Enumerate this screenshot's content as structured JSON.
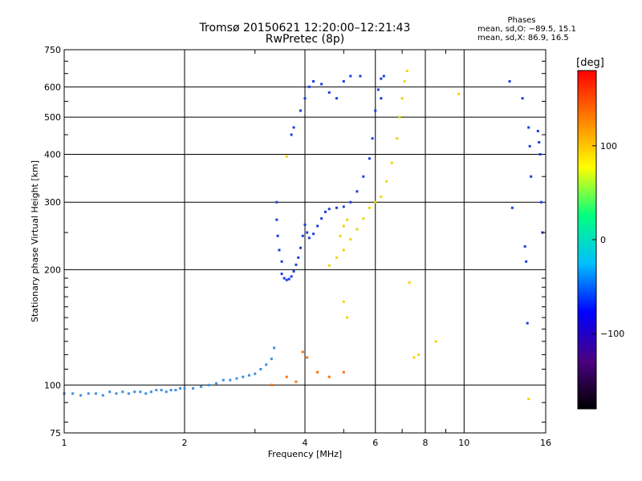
{
  "header": {
    "title_line1": "Tromsø 20150621 12:20:00–12:21:43",
    "title_line2": "RwPretec (8p)"
  },
  "phase_info": {
    "title": "Phases",
    "line_o": "mean, sd,O: −89.5, 15.1",
    "line_x": "mean, sd,X:  86.9, 16.5"
  },
  "colorbar": {
    "label": "[deg]",
    "ticks": [
      "100",
      "0",
      "−100"
    ],
    "tick_values": [
      100,
      0,
      -100
    ],
    "range": [
      -180,
      180
    ],
    "colors": [
      "#000000",
      "#4b0082",
      "#0000ff",
      "#00bfff",
      "#00ff80",
      "#ffff00",
      "#ff8000",
      "#ff0000"
    ]
  },
  "chart_data": {
    "type": "scatter",
    "title": "Tromsø 20150621 12:20:00–12:21:43",
    "subtitle": "RwPretec (8p)",
    "xlabel": "Frequency [MHz]",
    "ylabel": "Stationary phase Virtual Height [km]",
    "xscale": "log",
    "yscale": "log",
    "xlim": [
      1,
      16
    ],
    "ylim": [
      75,
      750
    ],
    "grid": true,
    "x_ticks_major": [
      1,
      2,
      4,
      6,
      8,
      10,
      16
    ],
    "x_tick_labels": [
      "1",
      "2",
      "4",
      "6",
      "8",
      "10",
      "16"
    ],
    "x_ticks_minor": [
      3,
      5,
      7,
      9
    ],
    "y_ticks_major": [
      75,
      100,
      200,
      300,
      400,
      500,
      600,
      750
    ],
    "y_tick_labels": [
      "75",
      "100",
      "200",
      "300",
      "400",
      "500",
      "600",
      "750"
    ],
    "series": [
      {
        "color": "#3a8fe0",
        "phase": -95,
        "points": [
          [
            1.0,
            95
          ],
          [
            1.05,
            95
          ],
          [
            1.1,
            94
          ],
          [
            1.15,
            95
          ],
          [
            1.2,
            95
          ],
          [
            1.25,
            94
          ],
          [
            1.3,
            96
          ],
          [
            1.35,
            95
          ],
          [
            1.4,
            96
          ],
          [
            1.45,
            95
          ],
          [
            1.5,
            96
          ],
          [
            1.55,
            96
          ],
          [
            1.6,
            95
          ],
          [
            1.65,
            96
          ],
          [
            1.7,
            97
          ],
          [
            1.75,
            97
          ],
          [
            1.8,
            96
          ],
          [
            1.85,
            97
          ],
          [
            1.9,
            97
          ],
          [
            1.95,
            98
          ],
          [
            2.0,
            98
          ],
          [
            2.1,
            98
          ],
          [
            2.2,
            99
          ],
          [
            2.3,
            100
          ],
          [
            2.4,
            101
          ],
          [
            2.5,
            103
          ],
          [
            2.6,
            103
          ],
          [
            2.7,
            104
          ],
          [
            2.8,
            105
          ],
          [
            2.9,
            106
          ],
          [
            3.0,
            107
          ],
          [
            3.1,
            110
          ],
          [
            3.2,
            113
          ],
          [
            3.3,
            117
          ],
          [
            3.35,
            125
          ]
        ]
      },
      {
        "color": "#1a3fe0",
        "phase": -110,
        "points": [
          [
            3.4,
            300
          ],
          [
            3.4,
            270
          ],
          [
            3.42,
            245
          ],
          [
            3.45,
            225
          ],
          [
            3.5,
            210
          ],
          [
            3.5,
            195
          ],
          [
            3.55,
            190
          ],
          [
            3.6,
            188
          ],
          [
            3.65,
            189
          ],
          [
            3.7,
            192
          ],
          [
            3.75,
            198
          ],
          [
            3.8,
            206
          ],
          [
            3.85,
            215
          ],
          [
            3.9,
            228
          ],
          [
            3.95,
            245
          ],
          [
            4.0,
            262
          ],
          [
            4.05,
            250
          ],
          [
            4.1,
            242
          ],
          [
            4.2,
            248
          ],
          [
            4.3,
            260
          ],
          [
            4.4,
            272
          ],
          [
            4.5,
            283
          ],
          [
            4.6,
            288
          ],
          [
            4.8,
            290
          ],
          [
            5.0,
            292
          ],
          [
            5.2,
            300
          ],
          [
            5.4,
            320
          ],
          [
            5.6,
            350
          ],
          [
            5.8,
            390
          ],
          [
            5.9,
            440
          ],
          [
            6.0,
            520
          ],
          [
            6.1,
            590
          ],
          [
            6.2,
            630
          ],
          [
            3.9,
            520
          ],
          [
            4.0,
            560
          ],
          [
            4.1,
            600
          ],
          [
            4.2,
            620
          ],
          [
            4.4,
            610
          ],
          [
            4.6,
            580
          ],
          [
            4.8,
            560
          ],
          [
            5.0,
            620
          ],
          [
            5.2,
            640
          ],
          [
            5.5,
            640
          ],
          [
            6.2,
            560
          ],
          [
            6.3,
            640
          ],
          [
            3.7,
            450
          ],
          [
            3.75,
            470
          ]
        ]
      },
      {
        "color": "#e8d800",
        "phase": 95,
        "points": [
          [
            4.6,
            205
          ],
          [
            4.8,
            215
          ],
          [
            5.0,
            225
          ],
          [
            5.2,
            240
          ],
          [
            5.4,
            255
          ],
          [
            5.6,
            272
          ],
          [
            5.8,
            290
          ],
          [
            6.0,
            300
          ],
          [
            6.2,
            310
          ],
          [
            6.4,
            340
          ],
          [
            6.6,
            380
          ],
          [
            6.8,
            440
          ],
          [
            6.9,
            500
          ],
          [
            7.0,
            560
          ],
          [
            7.1,
            620
          ],
          [
            7.2,
            660
          ],
          [
            5.0,
            260
          ],
          [
            5.1,
            270
          ],
          [
            4.9,
            245
          ]
        ]
      },
      {
        "color": "#ffd000",
        "phase": 110,
        "points": [
          [
            3.6,
            395
          ],
          [
            5.0,
            165
          ],
          [
            5.1,
            150
          ],
          [
            7.3,
            185
          ],
          [
            7.5,
            118
          ],
          [
            7.7,
            120
          ],
          [
            8.5,
            130
          ],
          [
            9.7,
            575
          ],
          [
            14.5,
            92
          ]
        ]
      },
      {
        "color": "#1a3fe0",
        "phase": -105,
        "points": [
          [
            13.0,
            620
          ],
          [
            14.0,
            560
          ],
          [
            14.5,
            470
          ],
          [
            14.6,
            420
          ],
          [
            14.7,
            350
          ],
          [
            15.3,
            460
          ],
          [
            15.4,
            430
          ],
          [
            15.5,
            400
          ],
          [
            14.2,
            230
          ],
          [
            14.3,
            210
          ],
          [
            14.4,
            145
          ],
          [
            13.2,
            290
          ],
          [
            15.6,
            300
          ],
          [
            15.7,
            250
          ]
        ]
      },
      {
        "color": "#ff7000",
        "phase": 140,
        "points": [
          [
            3.95,
            122
          ],
          [
            4.05,
            118
          ],
          [
            4.3,
            108
          ],
          [
            4.6,
            105
          ],
          [
            5.0,
            108
          ],
          [
            3.3,
            100
          ],
          [
            3.6,
            105
          ],
          [
            3.8,
            102
          ]
        ]
      }
    ]
  }
}
